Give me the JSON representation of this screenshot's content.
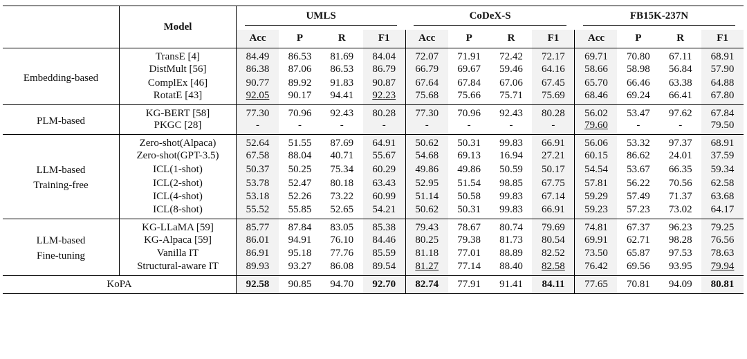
{
  "header": {
    "model": "Model",
    "datasets": [
      "UMLS",
      "CoDeX-S",
      "FB15K-237N"
    ],
    "metrics": [
      "Acc",
      "P",
      "R",
      "F1"
    ]
  },
  "sections": [
    {
      "label": [
        "Embedding-based"
      ],
      "rows": [
        {
          "model": "TransE [4]",
          "values": [
            "84.49",
            "86.53",
            "81.69",
            "84.04",
            "72.07",
            "71.91",
            "72.42",
            "72.17",
            "69.71",
            "70.80",
            "67.11",
            "68.91"
          ]
        },
        {
          "model": "DistMult [56]",
          "values": [
            "86.38",
            "87.06",
            "86.53",
            "86.79",
            "66.79",
            "69.67",
            "59.46",
            "64.16",
            "58.66",
            "58.98",
            "56.84",
            "57.90"
          ]
        },
        {
          "model": "ComplEx [46]",
          "values": [
            "90.77",
            "89.92",
            "91.83",
            "90.87",
            "67.64",
            "67.84",
            "67.06",
            "67.45",
            "65.70",
            "66.46",
            "63.38",
            "64.88"
          ]
        },
        {
          "model": "RotatE [43]",
          "values": [
            "92.05",
            "90.17",
            "94.41",
            "92.23",
            "75.68",
            "75.66",
            "75.71",
            "75.69",
            "68.46",
            "69.24",
            "66.41",
            "67.80"
          ],
          "underline": [
            0,
            3
          ]
        }
      ]
    },
    {
      "label": [
        "PLM-based"
      ],
      "rows": [
        {
          "model": "KG-BERT [58]",
          "values": [
            "77.30",
            "70.96",
            "92.43",
            "80.28",
            "77.30",
            "70.96",
            "92.43",
            "80.28",
            "56.02",
            "53.47",
            "97.62",
            "67.84"
          ]
        },
        {
          "model": "PKGC [28]",
          "values": [
            "-",
            "-",
            "-",
            "-",
            "-",
            "-",
            "-",
            "-",
            "79.60",
            "-",
            "-",
            "79.50"
          ],
          "underline": [
            8
          ]
        }
      ]
    },
    {
      "label": [
        "LLM-based",
        "Training-free"
      ],
      "rows": [
        {
          "model": "Zero-shot(Alpaca)",
          "values": [
            "52.64",
            "51.55",
            "87.69",
            "64.91",
            "50.62",
            "50.31",
            "99.83",
            "66.91",
            "56.06",
            "53.32",
            "97.37",
            "68.91"
          ]
        },
        {
          "model": "Zero-shot(GPT-3.5)",
          "values": [
            "67.58",
            "88.04",
            "40.71",
            "55.67",
            "54.68",
            "69.13",
            "16.94",
            "27.21",
            "60.15",
            "86.62",
            "24.01",
            "37.59"
          ]
        },
        {
          "model": "ICL(1-shot)",
          "values": [
            "50.37",
            "50.25",
            "75.34",
            "60.29",
            "49.86",
            "49.86",
            "50.59",
            "50.17",
            "54.54",
            "53.67",
            "66.35",
            "59.34"
          ]
        },
        {
          "model": "ICL(2-shot)",
          "values": [
            "53.78",
            "52.47",
            "80.18",
            "63.43",
            "52.95",
            "51.54",
            "98.85",
            "67.75",
            "57.81",
            "56.22",
            "70.56",
            "62.58"
          ]
        },
        {
          "model": "ICL(4-shot)",
          "values": [
            "53.18",
            "52.26",
            "73.22",
            "60.99",
            "51.14",
            "50.58",
            "99.83",
            "67.14",
            "59.29",
            "57.49",
            "71.37",
            "63.68"
          ]
        },
        {
          "model": "ICL(8-shot)",
          "values": [
            "55.52",
            "55.85",
            "52.65",
            "54.21",
            "50.62",
            "50.31",
            "99.83",
            "66.91",
            "59.23",
            "57.23",
            "73.02",
            "64.17"
          ]
        }
      ]
    },
    {
      "label": [
        "LLM-based",
        "Fine-tuning"
      ],
      "rows": [
        {
          "model": "KG-LLaMA [59]",
          "values": [
            "85.77",
            "87.84",
            "83.05",
            "85.38",
            "79.43",
            "78.67",
            "80.74",
            "79.69",
            "74.81",
            "67.37",
            "96.23",
            "79.25"
          ]
        },
        {
          "model": "KG-Alpaca [59]",
          "values": [
            "86.01",
            "94.91",
            "76.10",
            "84.46",
            "80.25",
            "79.38",
            "81.73",
            "80.54",
            "69.91",
            "62.71",
            "98.28",
            "76.56"
          ]
        },
        {
          "model": "Vanilla IT",
          "values": [
            "86.91",
            "95.18",
            "77.76",
            "85.59",
            "81.18",
            "77.01",
            "88.89",
            "82.52",
            "73.50",
            "65.87",
            "97.53",
            "78.63"
          ]
        },
        {
          "model": "Structural-aware IT",
          "values": [
            "89.93",
            "93.27",
            "86.08",
            "89.54",
            "81.27",
            "77.14",
            "88.40",
            "82.58",
            "76.42",
            "69.56",
            "93.95",
            "79.94"
          ],
          "underline": [
            4,
            7,
            11
          ]
        }
      ]
    }
  ],
  "final": {
    "model": "KoPA",
    "values": [
      "92.58",
      "90.85",
      "94.70",
      "92.70",
      "82.74",
      "77.91",
      "91.41",
      "84.11",
      "77.65",
      "70.81",
      "94.09",
      "80.81"
    ],
    "bold": [
      0,
      3,
      4,
      7,
      11
    ]
  }
}
